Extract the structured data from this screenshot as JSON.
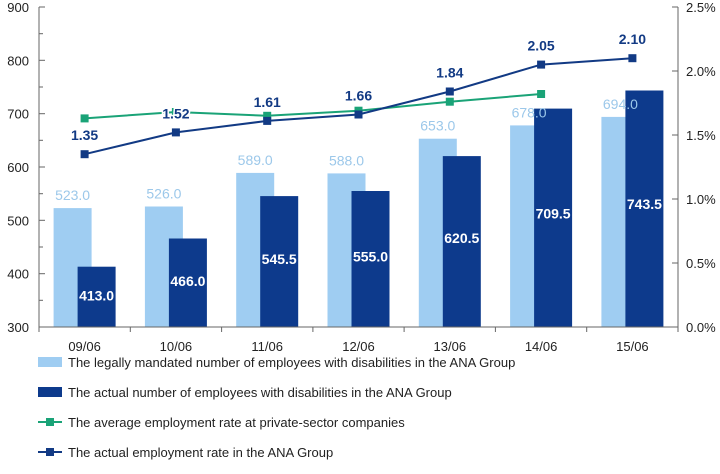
{
  "chart_data": {
    "type": "bar",
    "categories": [
      "09/06",
      "10/06",
      "11/06",
      "12/06",
      "13/06",
      "14/06",
      "15/06"
    ],
    "y_left": {
      "range": [
        300,
        900
      ],
      "ticks": [
        "300",
        "400",
        "500",
        "600",
        "700",
        "800",
        "900"
      ]
    },
    "y_right": {
      "range": [
        0,
        2.5
      ],
      "ticks": [
        "0.0%",
        "0.5%",
        "1.0%",
        "1.5%",
        "2.0%",
        "2.5%"
      ]
    },
    "grid": false,
    "legend_position": "bottom",
    "series": [
      {
        "name": "The legally mandated number of employees with disabilities in the ANA Group",
        "kind": "bar",
        "axis": "left",
        "color": "#9fcdf2",
        "values": [
          523.0,
          526.0,
          589.0,
          588.0,
          653.0,
          678.0,
          694.0
        ],
        "labels": [
          "523.0",
          "526.0",
          "589.0",
          "588.0",
          "653.0",
          "678.0",
          "694.0"
        ]
      },
      {
        "name": "The actual number of employees with disabilities in the ANA Group",
        "kind": "bar",
        "axis": "left",
        "color": "#0d3a8c",
        "values": [
          413.0,
          466.0,
          545.5,
          555.0,
          620.5,
          709.5,
          743.5
        ],
        "labels": [
          "413.0",
          "466.0",
          "545.5",
          "555.0",
          "620.5",
          "709.5",
          "743.5"
        ]
      },
      {
        "name": "The average employment rate at private-sector companies",
        "kind": "line",
        "axis": "right",
        "color": "#1aa377",
        "values": [
          1.63,
          1.68,
          1.65,
          1.69,
          1.76,
          1.82,
          null
        ]
      },
      {
        "name": "The actual employment rate in the ANA Group",
        "kind": "line",
        "axis": "right",
        "color": "#123a84",
        "values": [
          1.35,
          1.52,
          1.61,
          1.66,
          1.84,
          2.05,
          2.1
        ],
        "labels": [
          "1.35",
          "1.52",
          "1.61",
          "1.66",
          "1.84",
          "2.05",
          "2.10"
        ]
      }
    ]
  }
}
